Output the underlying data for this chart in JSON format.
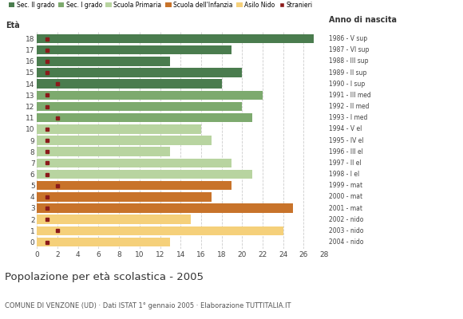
{
  "ages": [
    18,
    17,
    16,
    15,
    14,
    13,
    12,
    11,
    10,
    9,
    8,
    7,
    6,
    5,
    4,
    3,
    2,
    1,
    0
  ],
  "anno_nascita": [
    "1986 - V sup",
    "1987 - VI sup",
    "1988 - III sup",
    "1989 - II sup",
    "1990 - I sup",
    "1991 - III med",
    "1992 - II med",
    "1993 - I med",
    "1994 - V el",
    "1995 - IV el",
    "1996 - III el",
    "1997 - II el",
    "1998 - I el",
    "1999 - mat",
    "2000 - mat",
    "2001 - mat",
    "2002 - nido",
    "2003 - nido",
    "2004 - nido"
  ],
  "values": [
    27,
    19,
    13,
    20,
    18,
    22,
    20,
    21,
    16,
    17,
    13,
    19,
    21,
    19,
    17,
    25,
    15,
    24,
    13
  ],
  "stranieri": [
    1,
    1,
    1,
    1,
    2,
    1,
    1,
    2,
    1,
    1,
    1,
    1,
    1,
    2,
    1,
    1,
    1,
    2,
    1
  ],
  "bar_colors": [
    "#4a7c4e",
    "#4a7c4e",
    "#4a7c4e",
    "#4a7c4e",
    "#4a7c4e",
    "#7daa6e",
    "#7daa6e",
    "#7daa6e",
    "#b8d4a0",
    "#b8d4a0",
    "#b8d4a0",
    "#b8d4a0",
    "#b8d4a0",
    "#c8732a",
    "#c8732a",
    "#c8732a",
    "#f5d07a",
    "#f5d07a",
    "#f5d07a"
  ],
  "stranieri_color": "#8b1a1a",
  "legend_labels": [
    "Sec. II grado",
    "Sec. I grado",
    "Scuola Primaria",
    "Scuola dell'Infanzia",
    "Asilo Nido",
    "Stranieri"
  ],
  "legend_colors": [
    "#4a7c4e",
    "#7daa6e",
    "#b8d4a0",
    "#c8732a",
    "#f5d07a",
    "#8b1a1a"
  ],
  "title": "Popolazione per età scolastica - 2005",
  "subtitle": "COMUNE DI VENZONE (UD) · Dati ISTAT 1° gennaio 2005 · Elaborazione TUTTITALIA.IT",
  "xlabel_eta": "Età",
  "xlabel_anno": "Anno di nascita",
  "xlim": [
    0,
    28
  ],
  "xticks": [
    0,
    2,
    4,
    6,
    8,
    10,
    12,
    14,
    16,
    18,
    20,
    22,
    24,
    26,
    28
  ],
  "background_color": "#ffffff",
  "grid_color": "#cccccc"
}
